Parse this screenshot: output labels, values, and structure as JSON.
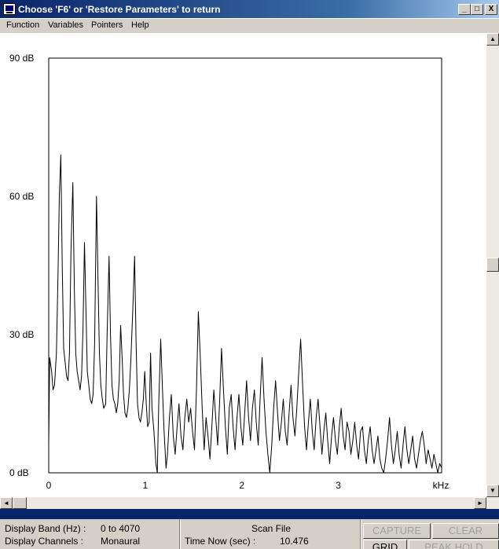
{
  "window": {
    "title": "Choose 'F6' or 'Restore Parameters' to return",
    "minimize_glyph": "_",
    "maximize_glyph": "□",
    "close_glyph": "X"
  },
  "menu": {
    "items": [
      {
        "label": "Function"
      },
      {
        "label": "Variables"
      },
      {
        "label": "Pointers"
      },
      {
        "label": "Help"
      }
    ]
  },
  "chart_data": {
    "type": "line",
    "title": "",
    "xlabel": "kHz",
    "ylabel": "",
    "x_unit": "kHz",
    "y_unit": "dB",
    "xlim": [
      0,
      4.07
    ],
    "ylim": [
      0,
      90
    ],
    "xticks": [
      {
        "value": 0,
        "label": "0"
      },
      {
        "value": 1,
        "label": "1"
      },
      {
        "value": 2,
        "label": "2"
      },
      {
        "value": 3,
        "label": "3"
      }
    ],
    "yticks": [
      {
        "value": 0,
        "label": "0 dB"
      },
      {
        "value": 30,
        "label": "30 dB"
      },
      {
        "value": 60,
        "label": "60 dB"
      },
      {
        "value": 90,
        "label": "90 dB"
      }
    ],
    "grid": false,
    "series": [
      {
        "color": "#000000",
        "points": [
          [
            0.0,
            6
          ],
          [
            0.01,
            25
          ],
          [
            0.03,
            22
          ],
          [
            0.045,
            18
          ],
          [
            0.06,
            19
          ],
          [
            0.08,
            26
          ],
          [
            0.095,
            42
          ],
          [
            0.11,
            60
          ],
          [
            0.125,
            69
          ],
          [
            0.14,
            45
          ],
          [
            0.155,
            27
          ],
          [
            0.17,
            24
          ],
          [
            0.185,
            21
          ],
          [
            0.2,
            20
          ],
          [
            0.215,
            26
          ],
          [
            0.23,
            48
          ],
          [
            0.25,
            63
          ],
          [
            0.265,
            40
          ],
          [
            0.28,
            26
          ],
          [
            0.295,
            22
          ],
          [
            0.31,
            20
          ],
          [
            0.325,
            18
          ],
          [
            0.34,
            21
          ],
          [
            0.355,
            31
          ],
          [
            0.37,
            50
          ],
          [
            0.385,
            36
          ],
          [
            0.4,
            22
          ],
          [
            0.415,
            19
          ],
          [
            0.43,
            16
          ],
          [
            0.445,
            15
          ],
          [
            0.46,
            17
          ],
          [
            0.475,
            28
          ],
          [
            0.495,
            60
          ],
          [
            0.51,
            42
          ],
          [
            0.525,
            26
          ],
          [
            0.54,
            19
          ],
          [
            0.555,
            16
          ],
          [
            0.57,
            14
          ],
          [
            0.59,
            15
          ],
          [
            0.605,
            30
          ],
          [
            0.625,
            47
          ],
          [
            0.64,
            30
          ],
          [
            0.655,
            19
          ],
          [
            0.67,
            16
          ],
          [
            0.685,
            15
          ],
          [
            0.7,
            13
          ],
          [
            0.715,
            15
          ],
          [
            0.73,
            20
          ],
          [
            0.745,
            32
          ],
          [
            0.76,
            25
          ],
          [
            0.775,
            17
          ],
          [
            0.79,
            13
          ],
          [
            0.805,
            12
          ],
          [
            0.82,
            14
          ],
          [
            0.835,
            18
          ],
          [
            0.85,
            24
          ],
          [
            0.87,
            35
          ],
          [
            0.89,
            47
          ],
          [
            0.905,
            28
          ],
          [
            0.92,
            15
          ],
          [
            0.935,
            12
          ],
          [
            0.95,
            11
          ],
          [
            0.965,
            13
          ],
          [
            0.98,
            16
          ],
          [
            0.995,
            22
          ],
          [
            1.01,
            15
          ],
          [
            1.025,
            10
          ],
          [
            1.04,
            11
          ],
          [
            1.055,
            26
          ],
          [
            1.07,
            14
          ],
          [
            1.09,
            9
          ],
          [
            1.11,
            2
          ],
          [
            1.125,
            0
          ],
          [
            1.14,
            15
          ],
          [
            1.16,
            29
          ],
          [
            1.18,
            17
          ],
          [
            1.195,
            9
          ],
          [
            1.215,
            1
          ],
          [
            1.23,
            4
          ],
          [
            1.25,
            12
          ],
          [
            1.27,
            17
          ],
          [
            1.29,
            8
          ],
          [
            1.31,
            4
          ],
          [
            1.33,
            10
          ],
          [
            1.35,
            15
          ],
          [
            1.37,
            8
          ],
          [
            1.39,
            5
          ],
          [
            1.41,
            12
          ],
          [
            1.43,
            16
          ],
          [
            1.45,
            11
          ],
          [
            1.47,
            14
          ],
          [
            1.49,
            9
          ],
          [
            1.51,
            5
          ],
          [
            1.53,
            18
          ],
          [
            1.55,
            35
          ],
          [
            1.57,
            25
          ],
          [
            1.59,
            14
          ],
          [
            1.61,
            5
          ],
          [
            1.63,
            12
          ],
          [
            1.65,
            8
          ],
          [
            1.67,
            3
          ],
          [
            1.69,
            10
          ],
          [
            1.71,
            18
          ],
          [
            1.73,
            12
          ],
          [
            1.75,
            6
          ],
          [
            1.77,
            15
          ],
          [
            1.79,
            27
          ],
          [
            1.81,
            18
          ],
          [
            1.83,
            10
          ],
          [
            1.85,
            4
          ],
          [
            1.87,
            14
          ],
          [
            1.89,
            17
          ],
          [
            1.91,
            10
          ],
          [
            1.93,
            5
          ],
          [
            1.95,
            12
          ],
          [
            1.97,
            17
          ],
          [
            1.99,
            10
          ],
          [
            2.01,
            6
          ],
          [
            2.03,
            13
          ],
          [
            2.05,
            20
          ],
          [
            2.07,
            12
          ],
          [
            2.09,
            7
          ],
          [
            2.11,
            14
          ],
          [
            2.13,
            18
          ],
          [
            2.15,
            11
          ],
          [
            2.17,
            6
          ],
          [
            2.19,
            16
          ],
          [
            2.21,
            25
          ],
          [
            2.23,
            16
          ],
          [
            2.25,
            9
          ],
          [
            2.27,
            4
          ],
          [
            2.29,
            0
          ],
          [
            2.31,
            6
          ],
          [
            2.33,
            14
          ],
          [
            2.35,
            20
          ],
          [
            2.37,
            13
          ],
          [
            2.39,
            7
          ],
          [
            2.41,
            11
          ],
          [
            2.43,
            16
          ],
          [
            2.45,
            9
          ],
          [
            2.47,
            6
          ],
          [
            2.49,
            13
          ],
          [
            2.51,
            19
          ],
          [
            2.53,
            12
          ],
          [
            2.55,
            8
          ],
          [
            2.57,
            14
          ],
          [
            2.59,
            22
          ],
          [
            2.61,
            29
          ],
          [
            2.63,
            19
          ],
          [
            2.65,
            10
          ],
          [
            2.67,
            5
          ],
          [
            2.69,
            11
          ],
          [
            2.71,
            16
          ],
          [
            2.73,
            9
          ],
          [
            2.75,
            5
          ],
          [
            2.77,
            12
          ],
          [
            2.79,
            16
          ],
          [
            2.81,
            10
          ],
          [
            2.83,
            4
          ],
          [
            2.85,
            9
          ],
          [
            2.87,
            13
          ],
          [
            2.89,
            7
          ],
          [
            2.91,
            2
          ],
          [
            2.93,
            8
          ],
          [
            2.95,
            12
          ],
          [
            2.97,
            7
          ],
          [
            2.99,
            4
          ],
          [
            3.01,
            10
          ],
          [
            3.03,
            14
          ],
          [
            3.05,
            8
          ],
          [
            3.07,
            5
          ],
          [
            3.09,
            11
          ],
          [
            3.11,
            9
          ],
          [
            3.13,
            4
          ],
          [
            3.15,
            7
          ],
          [
            3.17,
            11
          ],
          [
            3.19,
            6
          ],
          [
            3.21,
            3
          ],
          [
            3.23,
            9
          ],
          [
            3.25,
            10
          ],
          [
            3.27,
            5
          ],
          [
            3.29,
            2
          ],
          [
            3.31,
            7
          ],
          [
            3.33,
            10
          ],
          [
            3.35,
            5
          ],
          [
            3.37,
            2
          ],
          [
            3.39,
            5
          ],
          [
            3.41,
            8
          ],
          [
            3.43,
            3
          ],
          [
            3.45,
            1
          ],
          [
            3.47,
            0
          ],
          [
            3.49,
            3
          ],
          [
            3.51,
            7
          ],
          [
            3.53,
            12
          ],
          [
            3.55,
            6
          ],
          [
            3.57,
            2
          ],
          [
            3.59,
            5
          ],
          [
            3.61,
            9
          ],
          [
            3.63,
            4
          ],
          [
            3.65,
            1
          ],
          [
            3.67,
            6
          ],
          [
            3.69,
            10
          ],
          [
            3.71,
            5
          ],
          [
            3.73,
            2
          ],
          [
            3.75,
            5
          ],
          [
            3.77,
            8
          ],
          [
            3.79,
            3
          ],
          [
            3.81,
            1
          ],
          [
            3.83,
            4
          ],
          [
            3.85,
            7
          ],
          [
            3.87,
            9
          ],
          [
            3.89,
            6
          ],
          [
            3.91,
            2
          ],
          [
            3.93,
            5
          ],
          [
            3.95,
            3
          ],
          [
            3.97,
            1
          ],
          [
            3.99,
            4
          ],
          [
            4.01,
            2
          ],
          [
            4.03,
            0
          ],
          [
            4.05,
            2
          ],
          [
            4.07,
            1
          ]
        ]
      }
    ]
  },
  "status": {
    "display_band_label": "Display Band (Hz) :",
    "display_band_value": "0 to 4070",
    "display_channels_label": "Display Channels :",
    "display_channels_value": "Monaural",
    "scan_file_label": "Scan File",
    "time_now_label": "Time Now (sec) :",
    "time_now_value": "10.476"
  },
  "buttons": {
    "capture": "CAPTURE",
    "clear": "CLEAR",
    "grid": "GRID",
    "peak_hold": "PEAK HOLD"
  },
  "scroll": {
    "up_glyph": "▲",
    "down_glyph": "▼",
    "left_glyph": "◄",
    "right_glyph": "►"
  }
}
